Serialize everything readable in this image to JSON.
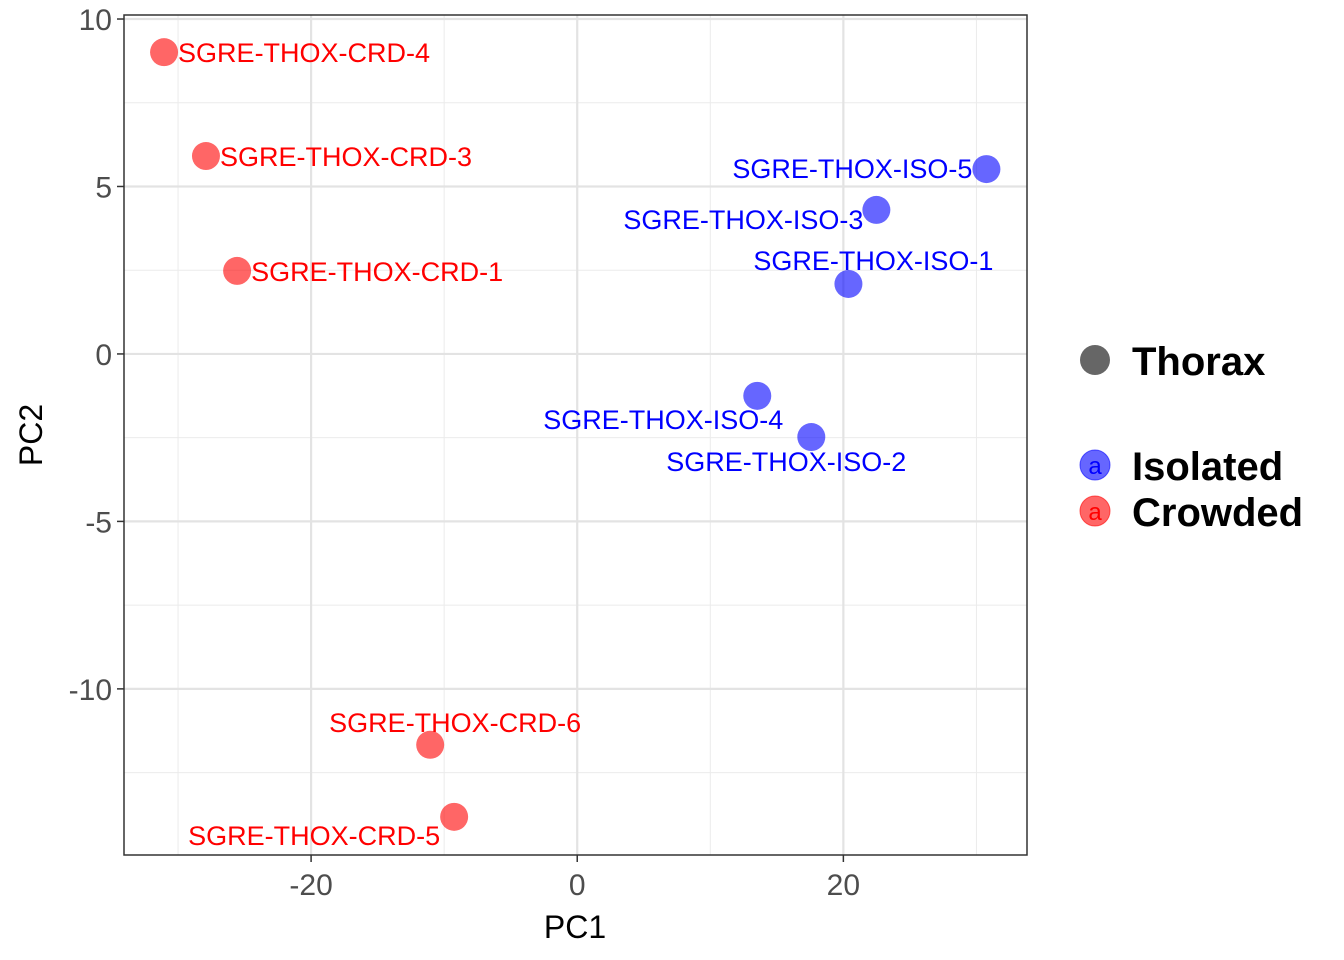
{
  "chart_data": {
    "type": "scatter",
    "xlabel": "PC1",
    "ylabel": "PC2",
    "xlim": [
      -34.06,
      33.8
    ],
    "ylim": [
      -14.96,
      10.12
    ],
    "x_ticks": [
      -20,
      0,
      20
    ],
    "y_ticks": [
      10,
      5,
      0,
      -5,
      -10
    ],
    "x_tick_labels": [
      "-20",
      "0",
      "20"
    ],
    "y_tick_labels": [
      "10",
      "5",
      "0",
      "-5",
      "-10"
    ],
    "grid": true,
    "legend_position": "right",
    "legend": {
      "shape_title": "Thorax",
      "entries": [
        {
          "label": "Isolated",
          "color": "#0000FF"
        },
        {
          "label": "Crowded",
          "color": "#FF0000"
        }
      ],
      "key_glyph": "a"
    },
    "series": [
      {
        "name": "Isolated",
        "color": "#0000FF",
        "points": [
          {
            "label": "SGRE-THOX-ISO-5",
            "x": 30.75,
            "y": 5.52
          },
          {
            "label": "SGRE-THOX-ISO-3",
            "x": 22.48,
            "y": 4.3
          },
          {
            "label": "SGRE-THOX-ISO-1",
            "x": 20.38,
            "y": 2.09
          },
          {
            "label": "SGRE-THOX-ISO-4",
            "x": 13.53,
            "y": -1.25
          },
          {
            "label": "SGRE-THOX-ISO-2",
            "x": 17.59,
            "y": -2.48
          }
        ]
      },
      {
        "name": "Crowded",
        "color": "#FF0000",
        "points": [
          {
            "label": "SGRE-THOX-CRD-4",
            "x": -31.05,
            "y": 9.01
          },
          {
            "label": "SGRE-THOX-CRD-3",
            "x": -27.9,
            "y": 5.91
          },
          {
            "label": "SGRE-THOX-CRD-1",
            "x": -25.56,
            "y": 2.48
          },
          {
            "label": "SGRE-THOX-CRD-6",
            "x": -11.05,
            "y": -11.67
          },
          {
            "label": "SGRE-THOX-CRD-5",
            "x": -9.25,
            "y": -13.82
          }
        ]
      }
    ]
  }
}
